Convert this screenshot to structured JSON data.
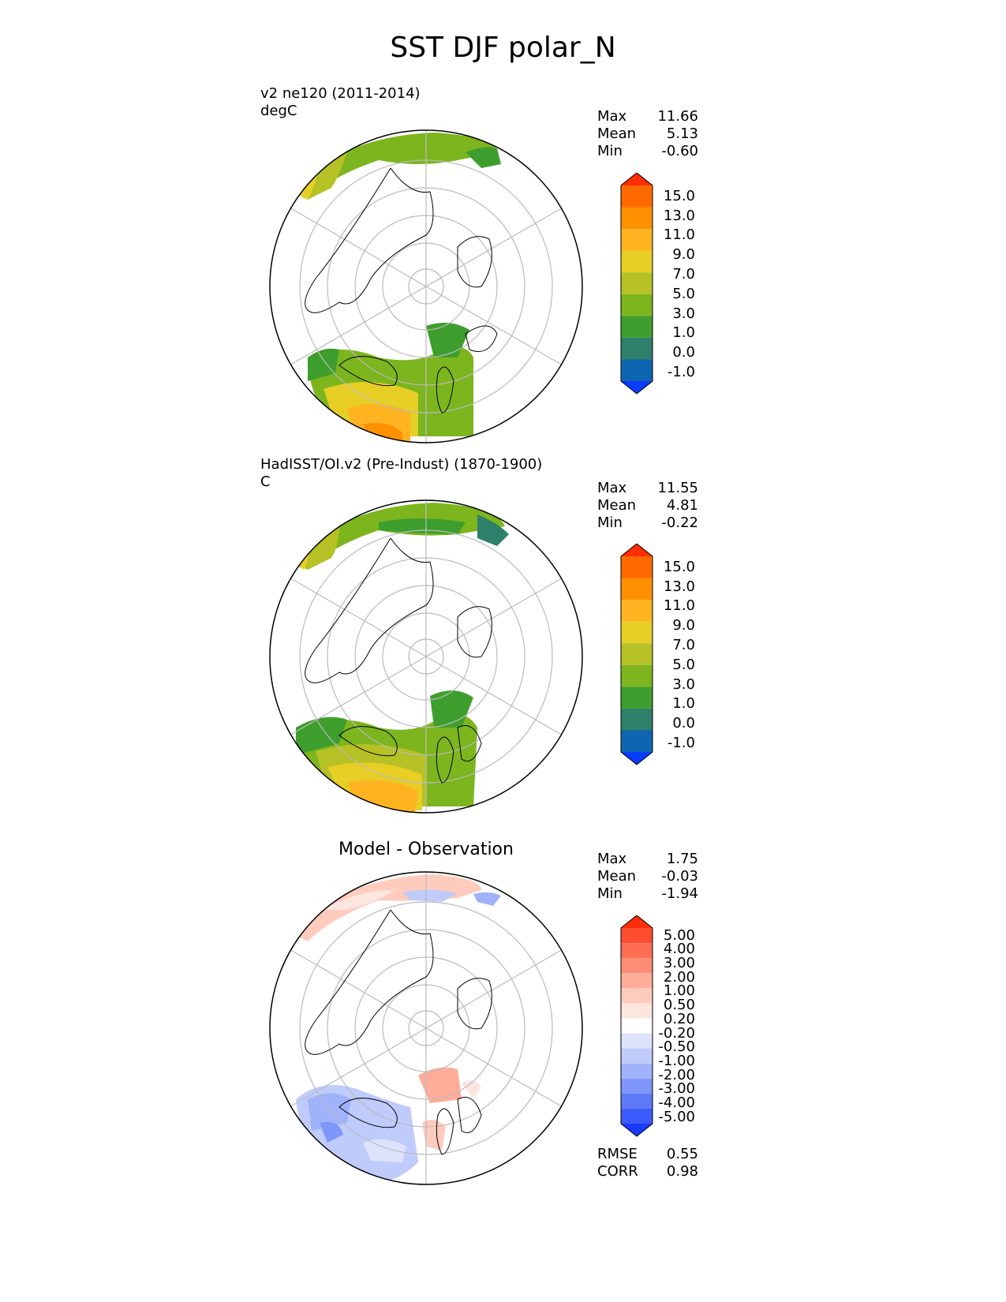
{
  "title": "SST DJF polar_N",
  "panels": [
    {
      "id": "model",
      "title_line1": "v2 ne120 (2011-2014)",
      "title_line2": "degC",
      "stats": [
        {
          "label": "Max",
          "value": "11.66"
        },
        {
          "label": "Mean",
          "value": "5.13"
        },
        {
          "label": "Min",
          "value": "-0.60"
        }
      ],
      "colorbar": {
        "ticks": [
          "15.0",
          "13.0",
          "11.0",
          "9.0",
          "7.0",
          "5.0",
          "3.0",
          "1.0",
          "0.0",
          "-1.0"
        ],
        "colors": [
          "#ff2d00",
          "#ff6a00",
          "#ff9000",
          "#ffb320",
          "#e6ce25",
          "#b5c124",
          "#7cb51d",
          "#3e9e2d",
          "#2e806a",
          "#0e66b0",
          "#0a3cff"
        ]
      }
    },
    {
      "id": "observation",
      "title_line1": "HadISST/OI.v2 (Pre-Indust) (1870-1900)",
      "title_line2": "C",
      "stats": [
        {
          "label": "Max",
          "value": "11.55"
        },
        {
          "label": "Mean",
          "value": "4.81"
        },
        {
          "label": "Min",
          "value": "-0.22"
        }
      ],
      "colorbar": {
        "ticks": [
          "15.0",
          "13.0",
          "11.0",
          "9.0",
          "7.0",
          "5.0",
          "3.0",
          "1.0",
          "0.0",
          "-1.0"
        ],
        "colors": [
          "#ff2d00",
          "#ff6a00",
          "#ff9000",
          "#ffb320",
          "#e6ce25",
          "#b5c124",
          "#7cb51d",
          "#3e9e2d",
          "#2e806a",
          "#0e66b0",
          "#0a3cff"
        ]
      }
    },
    {
      "id": "difference",
      "title": "Model - Observation",
      "stats": [
        {
          "label": "Max",
          "value": "1.75"
        },
        {
          "label": "Mean",
          "value": "-0.03"
        },
        {
          "label": "Min",
          "value": "-1.94"
        }
      ],
      "colorbar": {
        "ticks": [
          "5.00",
          "4.00",
          "3.00",
          "2.00",
          "1.00",
          "0.50",
          "0.20",
          "-0.20",
          "-0.50",
          "-1.00",
          "-2.00",
          "-3.00",
          "-4.00",
          "-5.00"
        ],
        "colors": [
          "#ff2d0a",
          "#ff4d30",
          "#ff6d52",
          "#ff8d75",
          "#ffac98",
          "#ffcbbd",
          "#fde6e0",
          "#ffffff",
          "#dde3fc",
          "#bfcbfb",
          "#a0b3fa",
          "#7f96fa",
          "#5e79fa",
          "#3d5afb",
          "#1b3afc"
        ]
      },
      "metrics": [
        {
          "label": "RMSE",
          "value": "0.55"
        },
        {
          "label": "CORR",
          "value": "0.98"
        }
      ]
    }
  ],
  "chart_data": [
    {
      "type": "heatmap",
      "title": "v2 ne120 (2011-2014)",
      "units": "degC",
      "projection": "north polar stereographic",
      "season": "DJF",
      "levels": [
        -1.0,
        0.0,
        1.0,
        3.0,
        5.0,
        7.0,
        9.0,
        11.0,
        13.0,
        15.0
      ],
      "max": 11.66,
      "mean": 5.13,
      "min": -0.6
    },
    {
      "type": "heatmap",
      "title": "HadISST/OI.v2 (Pre-Indust) (1870-1900)",
      "units": "C",
      "projection": "north polar stereographic",
      "season": "DJF",
      "levels": [
        -1.0,
        0.0,
        1.0,
        3.0,
        5.0,
        7.0,
        9.0,
        11.0,
        13.0,
        15.0
      ],
      "max": 11.55,
      "mean": 4.81,
      "min": -0.22
    },
    {
      "type": "heatmap",
      "title": "Model - Observation",
      "projection": "north polar stereographic",
      "season": "DJF",
      "levels": [
        -5.0,
        -4.0,
        -3.0,
        -2.0,
        -1.0,
        -0.5,
        -0.2,
        0.2,
        0.5,
        1.0,
        2.0,
        3.0,
        4.0,
        5.0
      ],
      "max": 1.75,
      "mean": -0.03,
      "min": -1.94,
      "rmse": 0.55,
      "corr": 0.98
    }
  ]
}
